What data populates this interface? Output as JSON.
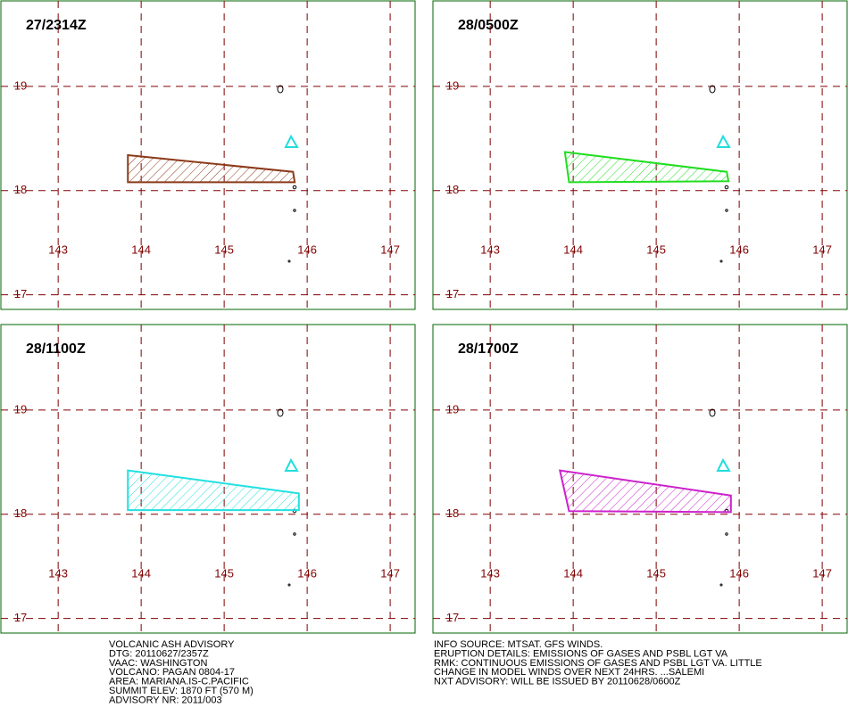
{
  "map": {
    "xlim": [
      142.31,
      147.3
    ],
    "ylim": [
      16.86,
      19.82
    ],
    "xticks": [
      143,
      144,
      145,
      146,
      147
    ],
    "yticks": [
      17,
      18,
      19
    ],
    "panels": [
      {
        "time": "27/2314Z",
        "color": "#8b3a1a",
        "polygon": {
          "lon": [
            143.84,
            145.83,
            145.85,
            143.84
          ],
          "lat": [
            18.34,
            18.18,
            18.08,
            18.08
          ]
        }
      },
      {
        "time": "28/0500Z",
        "color": "#22dd22",
        "polygon": {
          "lon": [
            143.9,
            145.85,
            145.87,
            143.95
          ],
          "lat": [
            18.37,
            18.18,
            18.09,
            18.08
          ]
        }
      },
      {
        "time": "28/1100Z",
        "color": "#22e0e0",
        "polygon": {
          "lon": [
            143.84,
            145.9,
            145.9,
            143.84
          ],
          "lat": [
            18.42,
            18.2,
            18.04,
            18.04
          ]
        }
      },
      {
        "time": "28/1700Z",
        "color": "#cc22cc",
        "polygon": {
          "lon": [
            143.84,
            145.9,
            145.9,
            143.95
          ],
          "lat": [
            18.42,
            18.18,
            18.02,
            18.03
          ]
        }
      }
    ],
    "info_left": [
      "VOLCANIC ASH ADVISORY",
      "DTG: 20110627/2357Z",
      "VAAC: WASHINGTON",
      "VOLCANO: PAGAN 0804-17",
      "AREA: MARIANA.IS-C.PACIFIC",
      "SUMMIT ELEV: 1870 FT (570 M)",
      "ADVISORY NR: 2011/003"
    ],
    "info_right": [
      "INFO SOURCE: MTSAT. GFS WINDS.",
      "ERUPTION DETAILS: EMISSIONS OF GASES AND PSBL LGT VA",
      "RMK: CONTINUOUS EMISSIONS OF GASES AND PSBL LGT VA. LITTLE",
      "CHANGE IN MODEL WINDS OVER NEXT 24HRS. ...SALEMI",
      "NXT ADVISORY: WILL BE ISSUED BY 20110628/0600Z"
    ]
  }
}
